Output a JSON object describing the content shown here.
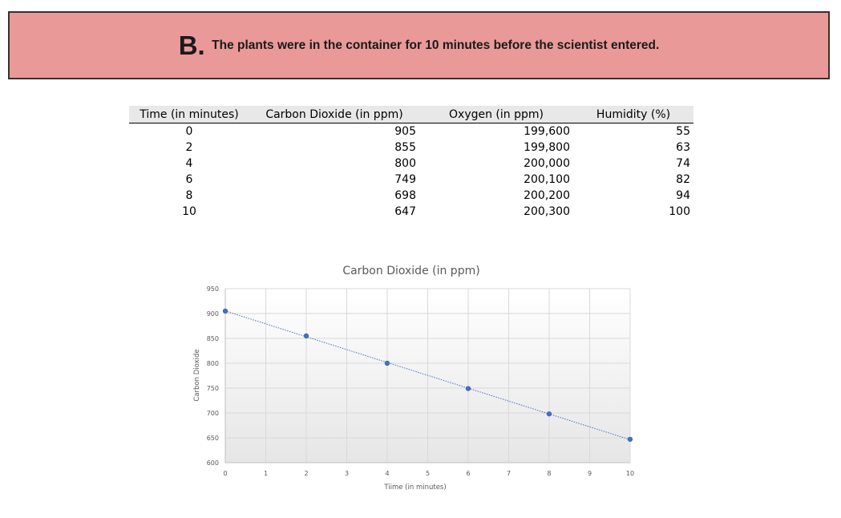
{
  "banner": {
    "letter": "B.",
    "text": "The plants were in the container for 10 minutes before the scientist entered."
  },
  "table": {
    "headers": [
      "Time (in minutes)",
      "Carbon Dioxide (in ppm)",
      "Oxygen (in ppm)",
      "Humidity (%)"
    ],
    "rows": [
      [
        "0",
        "905",
        "199,600",
        "55"
      ],
      [
        "2",
        "855",
        "199,800",
        "63"
      ],
      [
        "4",
        "800",
        "200,000",
        "74"
      ],
      [
        "6",
        "749",
        "200,100",
        "82"
      ],
      [
        "8",
        "698",
        "200,200",
        "94"
      ],
      [
        "10",
        "647",
        "200,300",
        "100"
      ]
    ]
  },
  "chart_data": {
    "type": "scatter",
    "title": "Carbon Dioxide (in ppm)",
    "xlabel": "Tiime (in minutes)",
    "ylabel": "Carbon Dioxide",
    "x": [
      0,
      2,
      4,
      6,
      8,
      10
    ],
    "y": [
      905,
      855,
      800,
      749,
      698,
      647
    ],
    "xlim": [
      0,
      10
    ],
    "ylim": [
      600,
      950
    ],
    "xticks": [
      0,
      1,
      2,
      3,
      4,
      5,
      6,
      7,
      8,
      9,
      10
    ],
    "yticks": [
      600,
      650,
      700,
      750,
      800,
      850,
      900,
      950
    ],
    "trendline": "linear dotted",
    "grid": true,
    "marker_color": "#4472c4",
    "trendline_color": "#4472c4"
  }
}
